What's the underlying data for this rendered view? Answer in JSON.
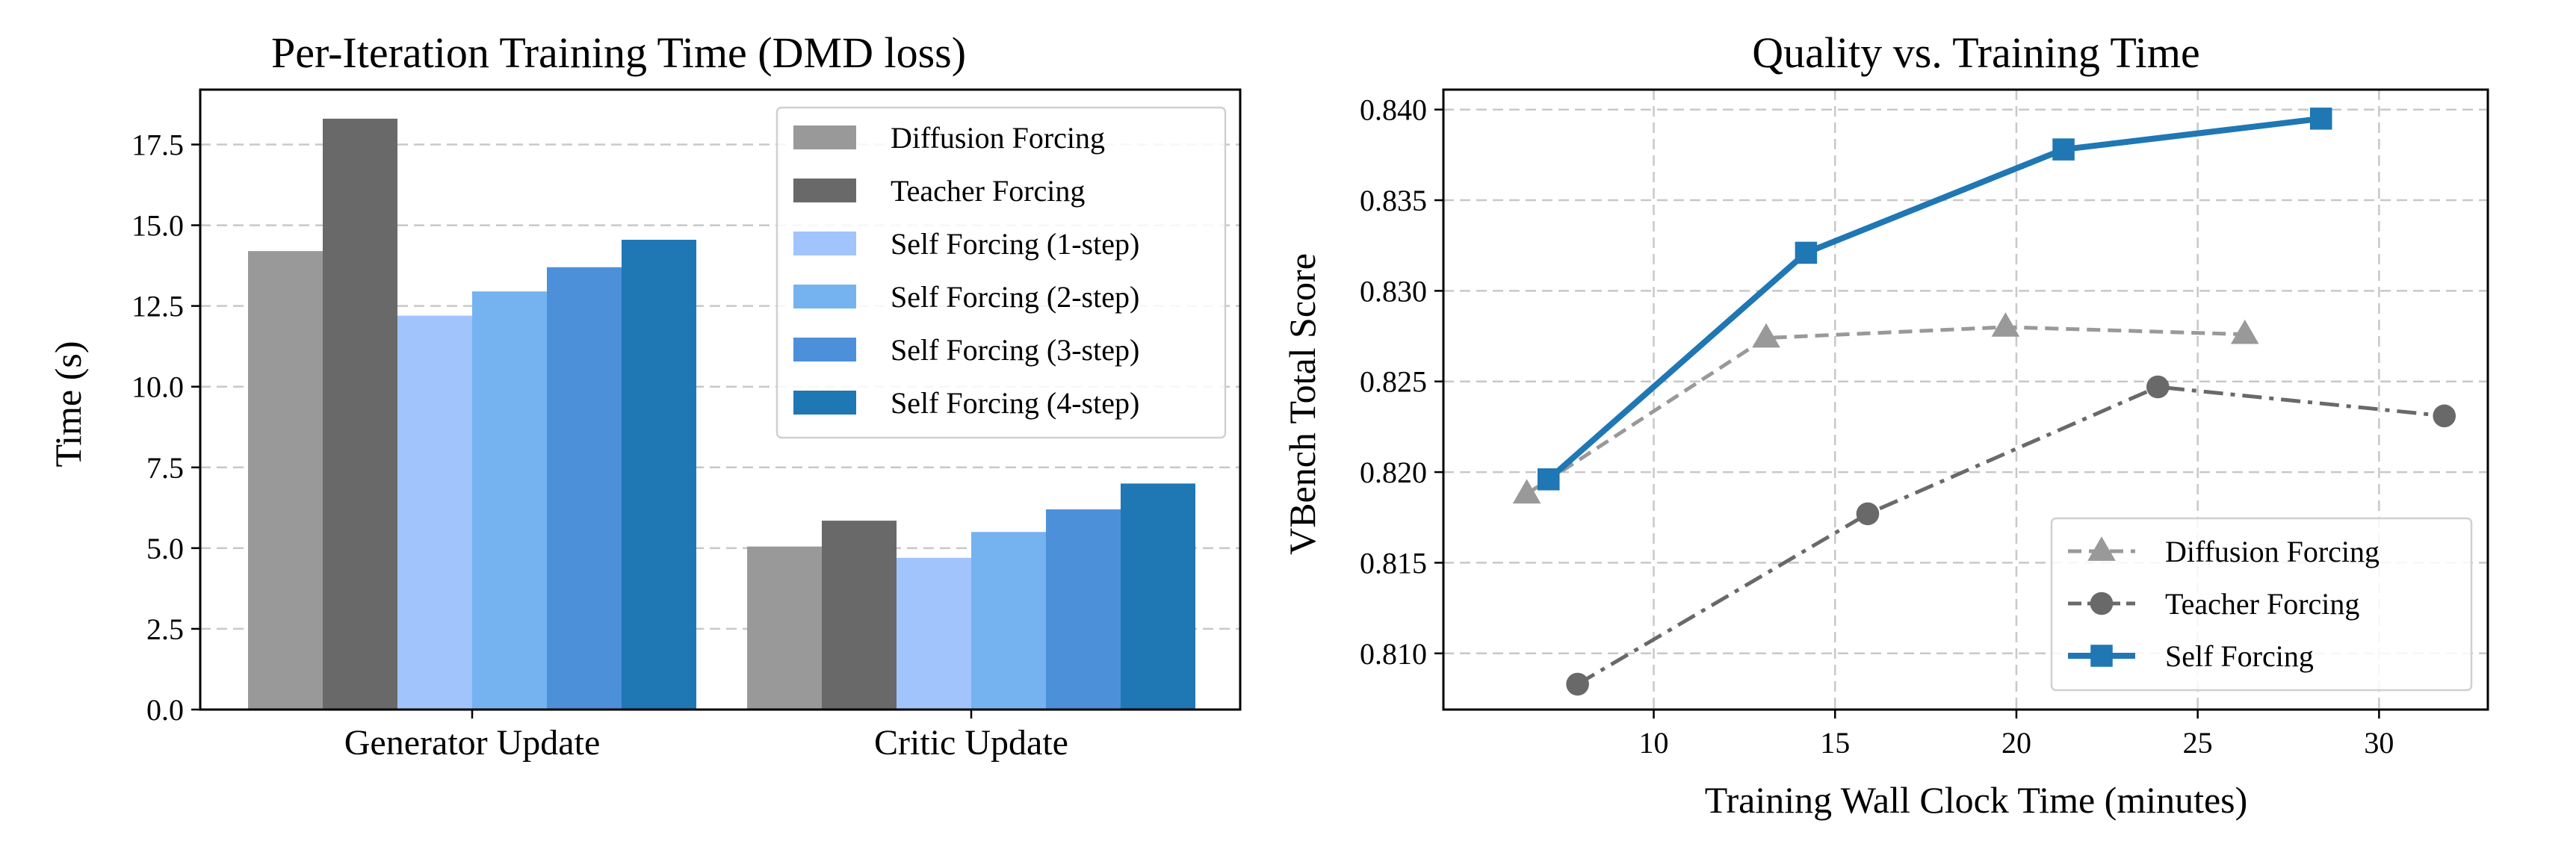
{
  "chart_data": [
    {
      "type": "bar",
      "title": "Per-Iteration Training Time (DMD loss)",
      "xlabel": "",
      "ylabel": "Time (s)",
      "ylim": [
        0,
        19.2
      ],
      "yticks": [
        "0.0",
        "2.5",
        "5.0",
        "7.5",
        "10.0",
        "12.5",
        "15.0",
        "17.5"
      ],
      "ytick_values": [
        0,
        2.5,
        5,
        7.5,
        10,
        12.5,
        15,
        17.5
      ],
      "categories": [
        "Generator Update",
        "Critic Update"
      ],
      "grid": "horizontal dashed",
      "legend_position": "top-right",
      "series": [
        {
          "name": "Diffusion Forcing",
          "color": "#999999",
          "values": [
            14.2,
            5.05
          ]
        },
        {
          "name": "Teacher Forcing",
          "color": "#696969",
          "values": [
            18.3,
            5.85
          ]
        },
        {
          "name": "Self Forcing (1-step)",
          "color": "#a1c4fd",
          "values": [
            12.2,
            4.7
          ]
        },
        {
          "name": "Self Forcing (2-step)",
          "color": "#74b3f0",
          "values": [
            12.95,
            5.5
          ]
        },
        {
          "name": "Self Forcing (3-step)",
          "color": "#4d90da",
          "values": [
            13.7,
            6.2
          ]
        },
        {
          "name": "Self Forcing (4-step)",
          "color": "#1f77b4",
          "values": [
            14.55,
            7.0
          ]
        }
      ]
    },
    {
      "type": "line",
      "title": "Quality vs. Training Time",
      "xlabel": "Training Wall Clock Time (minutes)",
      "ylabel": "VBench Total Score",
      "xlim": [
        4.2,
        33.0
      ],
      "ylim": [
        0.8069,
        0.8411
      ],
      "xticks": [
        "10",
        "15",
        "20",
        "25",
        "30"
      ],
      "xtick_values": [
        10,
        15,
        20,
        25,
        30
      ],
      "yticks": [
        "0.810",
        "0.815",
        "0.820",
        "0.825",
        "0.830",
        "0.835",
        "0.840"
      ],
      "ytick_values": [
        0.81,
        0.815,
        0.82,
        0.825,
        0.83,
        0.835,
        0.84
      ],
      "grid": "both dashed",
      "legend_position": "lower-right",
      "series": [
        {
          "name": "Diffusion Forcing",
          "color": "#999999",
          "marker": "triangle",
          "linestyle": "dashed",
          "x": [
            6.5,
            13.1,
            19.7,
            26.3
          ],
          "y": [
            0.8188,
            0.8274,
            0.828,
            0.8276
          ]
        },
        {
          "name": "Teacher Forcing",
          "color": "#696969",
          "marker": "circle",
          "linestyle": "dashdot",
          "x": [
            7.9,
            15.9,
            23.9,
            31.8
          ],
          "y": [
            0.8083,
            0.8177,
            0.8247,
            0.8231
          ]
        },
        {
          "name": "Self Forcing",
          "color": "#1f77b4",
          "marker": "square",
          "linestyle": "solid",
          "x": [
            7.1,
            14.2,
            21.3,
            28.4
          ],
          "y": [
            0.8196,
            0.8321,
            0.8378,
            0.8395
          ]
        }
      ]
    }
  ]
}
